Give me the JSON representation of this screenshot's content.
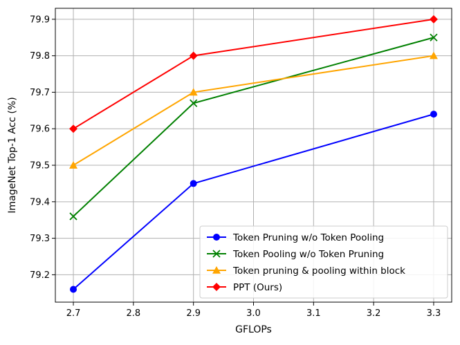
{
  "chart_data": {
    "type": "line",
    "title": "",
    "xlabel": "GFLOPs",
    "ylabel": "ImageNet Top-1 Acc (%)",
    "x": [
      2.7,
      2.9,
      3.3
    ],
    "xlim": [
      2.67,
      3.33
    ],
    "ylim": [
      79.125,
      79.93
    ],
    "xticks": [
      "2.7",
      "2.8",
      "2.9",
      "3.0",
      "3.1",
      "3.2",
      "3.3"
    ],
    "yticks": [
      "79.2",
      "79.3",
      "79.4",
      "79.5",
      "79.6",
      "79.7",
      "79.8",
      "79.9"
    ],
    "grid": true,
    "legend_position": "lower-right",
    "series": [
      {
        "name": "Token Pruning w/o Token Pooling",
        "values": [
          79.16,
          79.45,
          79.64
        ],
        "color": "#0000ff",
        "marker": "circle"
      },
      {
        "name": "Token Pooling w/o Token Pruning",
        "values": [
          79.36,
          79.67,
          79.85
        ],
        "color": "#008000",
        "marker": "x"
      },
      {
        "name": "Token pruning & pooling within block",
        "values": [
          79.5,
          79.7,
          79.8
        ],
        "color": "#ffa500",
        "marker": "triangle"
      },
      {
        "name": "PPT (Ours)",
        "values": [
          79.6,
          79.8,
          79.9
        ],
        "color": "#ff0000",
        "marker": "diamond"
      }
    ]
  }
}
